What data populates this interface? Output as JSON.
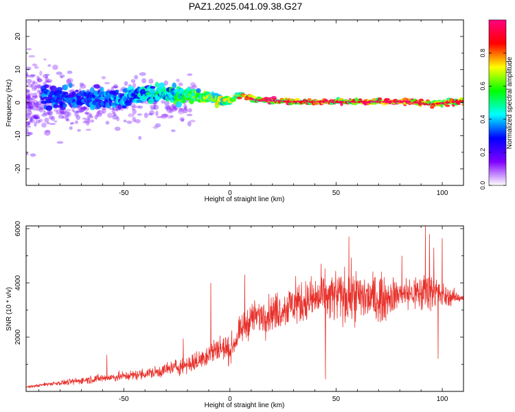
{
  "title": "PAZ1.2025.041.09.38.G27",
  "chart_data": [
    {
      "type": "heatmap",
      "xlabel": "Height of straight line (km)",
      "ylabel": "Frequency (Hz)",
      "xlim": [
        -96,
        110
      ],
      "ylim": [
        -25,
        25
      ],
      "xticks": [
        -50,
        0,
        50,
        100
      ],
      "yticks": [
        -20,
        -10,
        0,
        10,
        20
      ],
      "colorbar": {
        "label": "Normalized spectral amplitude",
        "range": [
          0,
          1
        ],
        "ticks": [
          0.0,
          0.2,
          0.4,
          0.6,
          0.8
        ],
        "colormap": [
          "#ffffff",
          "#7f00ff",
          "#0000ff",
          "#00ffff",
          "#00ff00",
          "#ffff00",
          "#ff0000",
          "#ff0080"
        ]
      },
      "ridge": [
        {
          "x": -60,
          "f": 1.5,
          "a": 0.35,
          "w": 3.0
        },
        {
          "x": -50,
          "f": 1.0,
          "a": 0.4,
          "w": 2.8
        },
        {
          "x": -40,
          "f": 2.5,
          "a": 0.45,
          "w": 2.6
        },
        {
          "x": -30,
          "f": 3.0,
          "a": 0.5,
          "w": 2.4
        },
        {
          "x": -20,
          "f": 2.0,
          "a": 0.6,
          "w": 2.0
        },
        {
          "x": -10,
          "f": 1.5,
          "a": 0.65,
          "w": 1.6
        },
        {
          "x": 0,
          "f": 0.5,
          "a": 0.7,
          "w": 1.3
        },
        {
          "x": 5,
          "f": 2.5,
          "a": 0.75,
          "w": 1.1
        },
        {
          "x": 12,
          "f": 0.8,
          "a": 0.9,
          "w": 0.9
        },
        {
          "x": 30,
          "f": 0.3,
          "a": 0.85,
          "w": 0.8
        },
        {
          "x": 60,
          "f": 0.2,
          "a": 0.9,
          "w": 0.8
        },
        {
          "x": 85,
          "f": 0.3,
          "a": 0.95,
          "w": 0.8
        },
        {
          "x": 95,
          "f": -0.5,
          "a": 0.8,
          "w": 0.9
        },
        {
          "x": 110,
          "f": 0.5,
          "a": 0.85,
          "w": 0.9
        }
      ]
    },
    {
      "type": "line",
      "xlabel": "Height of straight line (km)",
      "ylabel": "SNR (10 * v/v)",
      "xlim": [
        -96,
        110
      ],
      "ylim": [
        0,
        6100
      ],
      "xticks": [
        -50,
        0,
        50,
        100
      ],
      "yticks": [
        2000,
        4000,
        6000
      ],
      "series": [
        {
          "color": "#e8302a",
          "x": [
            -96,
            -85,
            -75,
            -65,
            -55,
            -45,
            -35,
            -25,
            -15,
            -10,
            -5,
            0,
            5,
            10,
            20,
            30,
            40,
            50,
            60,
            70,
            80,
            90,
            95,
            100,
            110
          ],
          "y": [
            150,
            280,
            350,
            450,
            520,
            600,
            700,
            900,
            1100,
            1400,
            1600,
            1500,
            2200,
            2700,
            2900,
            3200,
            3400,
            3500,
            3500,
            3400,
            3600,
            3600,
            3800,
            3500,
            3450
          ],
          "noise": [
            50,
            100,
            150,
            200,
            220,
            250,
            300,
            400,
            500,
            600,
            700,
            600,
            700,
            800,
            900,
            1000,
            1100,
            1300,
            1300,
            1200,
            700,
            1000,
            1100,
            600,
            150
          ],
          "peaks": [
            {
              "x": -58,
              "y": 1350
            },
            {
              "x": -22,
              "y": 1950
            },
            {
              "x": -9,
              "y": 4000
            },
            {
              "x": -2,
              "y": 2000
            },
            {
              "x": 7,
              "y": 4300
            },
            {
              "x": 31,
              "y": 4250
            },
            {
              "x": 43,
              "y": 4700
            },
            {
              "x": 45,
              "y": 450
            },
            {
              "x": 56,
              "y": 5700
            },
            {
              "x": 81,
              "y": 5000
            },
            {
              "x": 92,
              "y": 6100
            },
            {
              "x": 94,
              "y": 5800
            },
            {
              "x": 96,
              "y": 5300
            },
            {
              "x": 100,
              "y": 5650
            },
            {
              "x": 98,
              "y": 1200
            }
          ]
        }
      ]
    }
  ]
}
